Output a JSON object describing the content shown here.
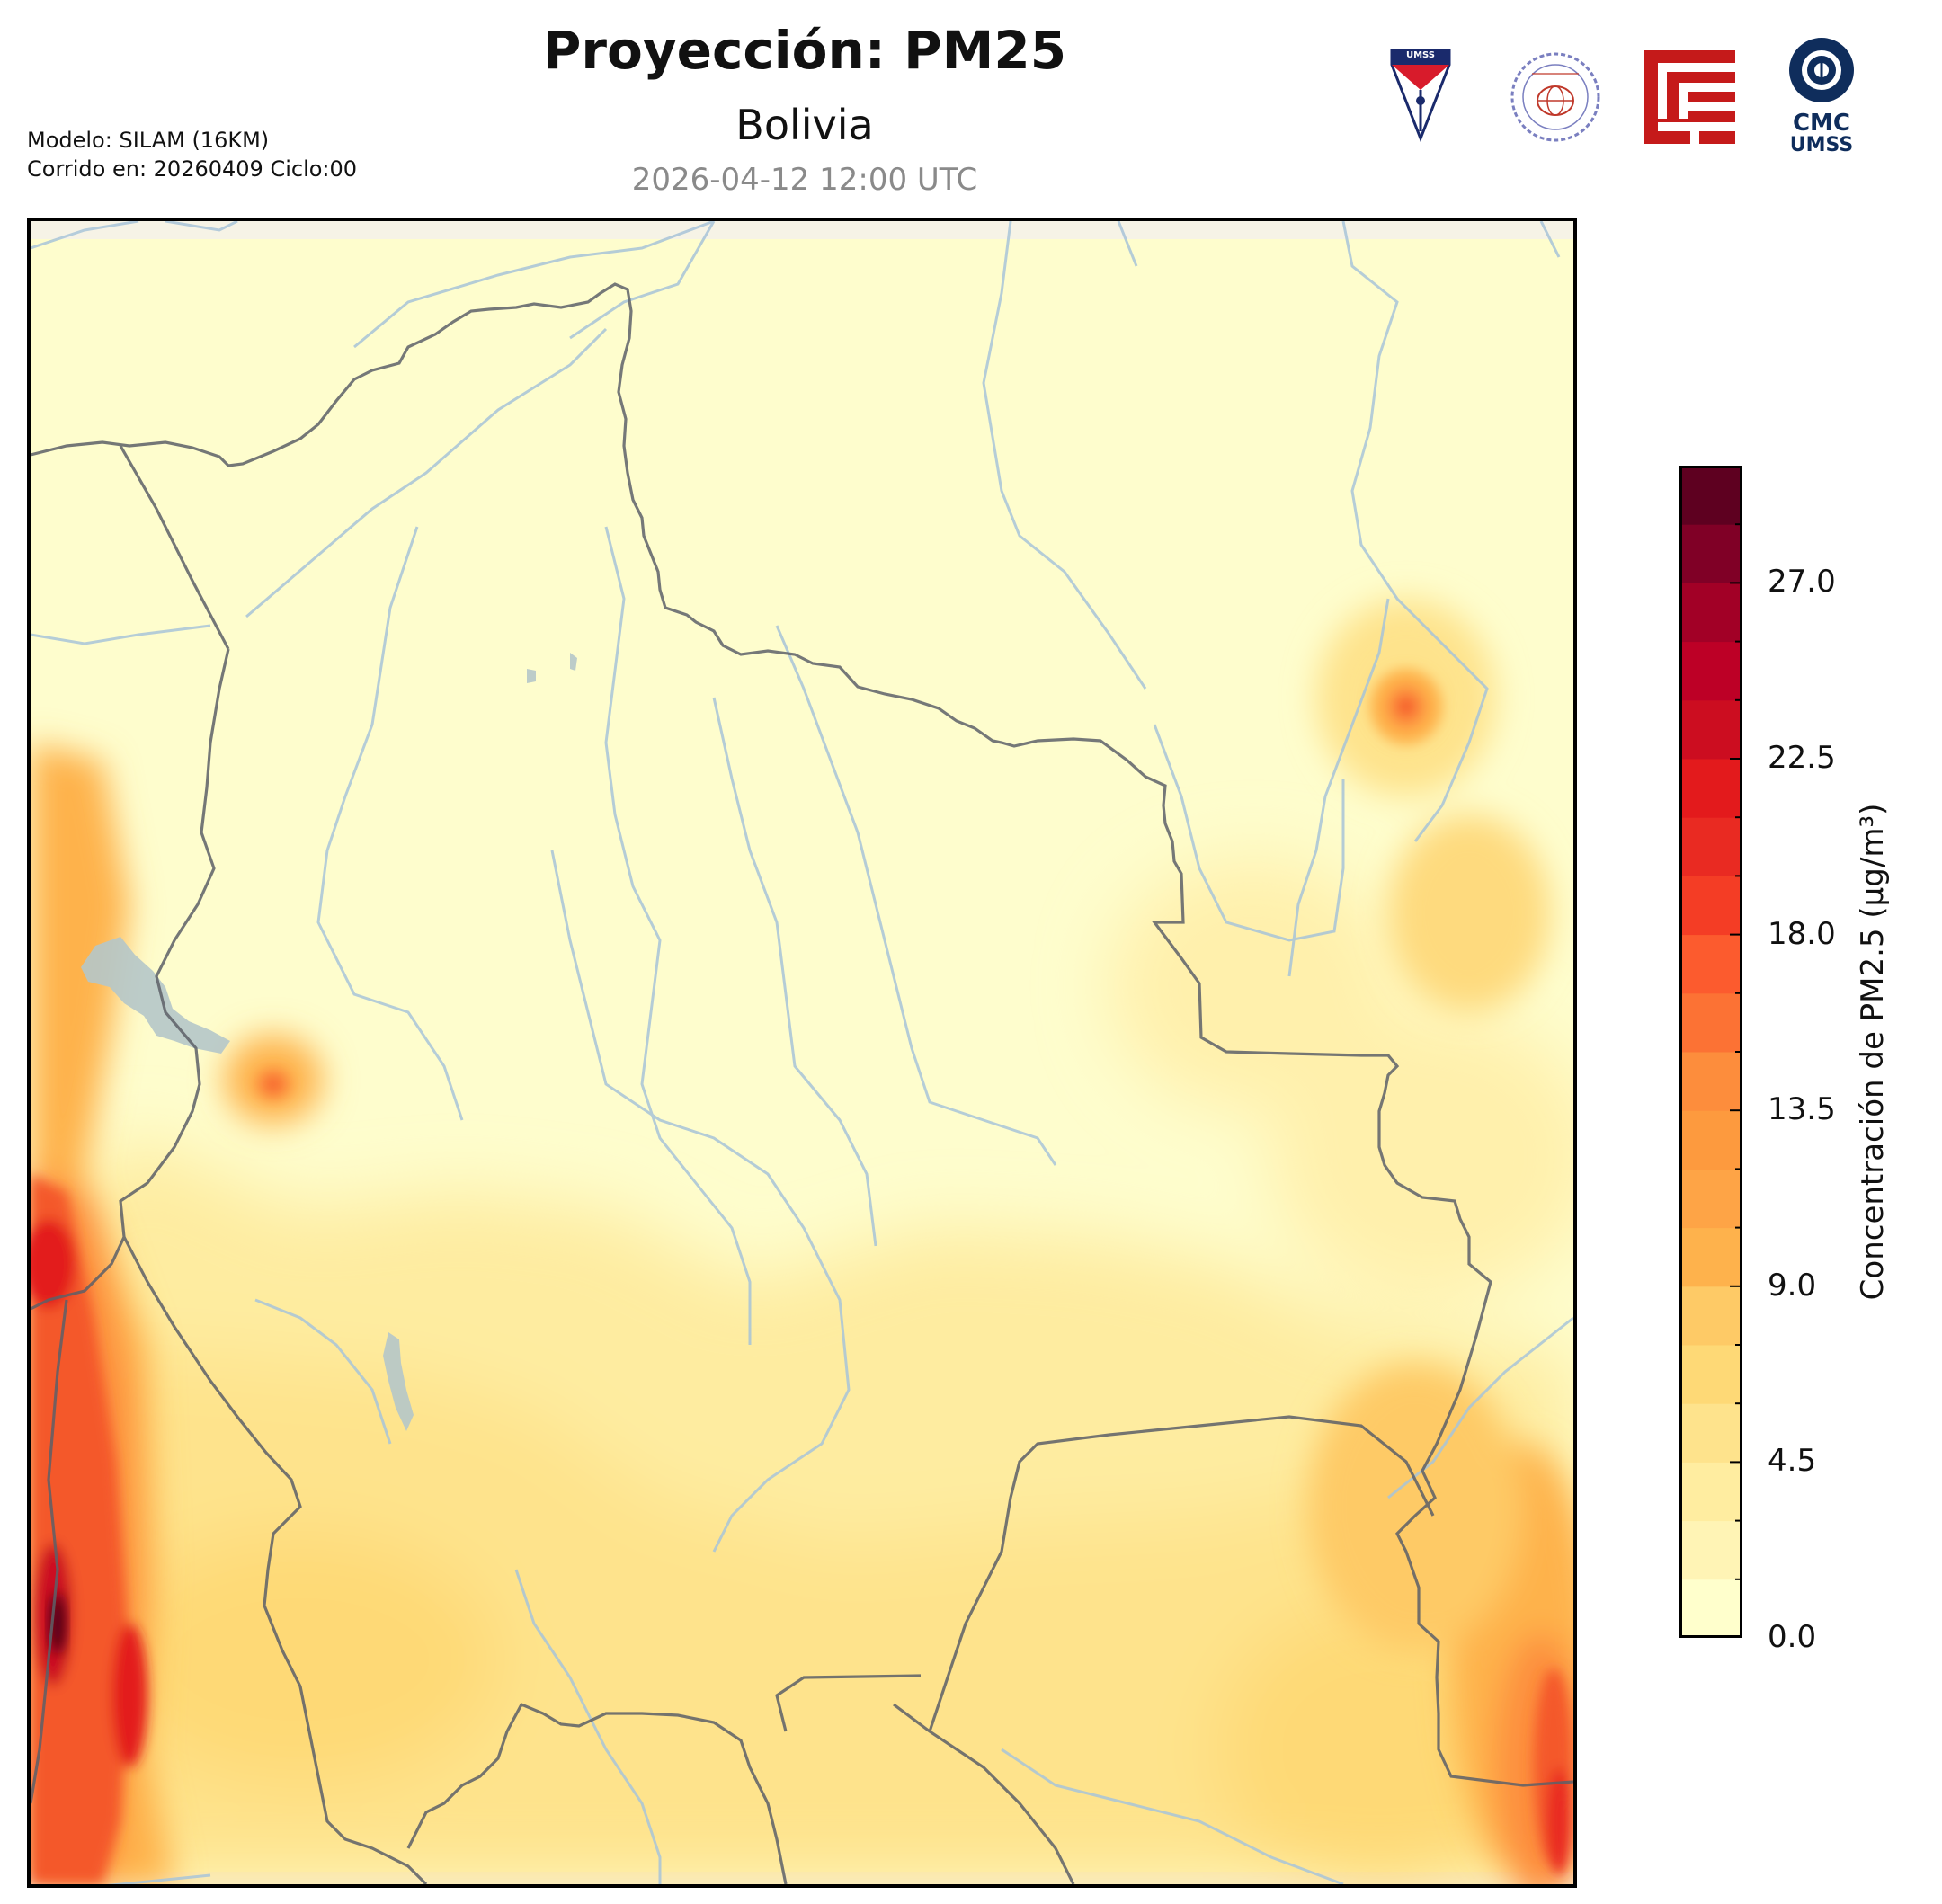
{
  "header": {
    "title": "Proyección: PM25",
    "subtitle": "Bolivia",
    "datetime": "2026-04-12 12:00 UTC"
  },
  "meta": {
    "model": "Modelo: SILAM (16KM)",
    "run": "Corrido en: 20260409 Ciclo:00"
  },
  "logos": {
    "umss_text": "UMSS",
    "cmc_line1": "CMC",
    "cmc_line2": "UMSS",
    "fisica_seal_text": "DEPARTAMENTO DE FISICA"
  },
  "colorbar": {
    "label": "Concentración de PM2.5 (µg/m³)",
    "min": 0,
    "max": 30,
    "ticks": [
      "0.0",
      "4.5",
      "9.0",
      "13.5",
      "18.0",
      "22.5",
      "27.0"
    ],
    "tick_values": [
      0,
      4.5,
      9,
      13.5,
      18,
      22.5,
      27
    ],
    "levels": [
      0,
      1.5,
      3,
      4.5,
      6,
      7.5,
      9,
      10.5,
      12,
      13.5,
      15,
      16.5,
      18,
      19.5,
      21,
      22.5,
      24,
      25.5,
      27,
      28.5,
      30
    ],
    "colors": [
      "#ffffcc",
      "#fff4b5",
      "#ffeda0",
      "#fee38c",
      "#fed976",
      "#feca66",
      "#feb24c",
      "#fea446",
      "#fd9a3e",
      "#fd8d3c",
      "#fc7234",
      "#fc5b2e",
      "#f43d25",
      "#e92a22",
      "#e31a1c",
      "#cc0d20",
      "#bd0026",
      "#a20026",
      "#800026",
      "#5e0020"
    ],
    "cmap": "YlOrRd"
  },
  "map": {
    "region": "Bolivia",
    "variable": "PM2.5",
    "base_color": "#fefdcd",
    "river_color": "#a8c4d8",
    "border_color": "#555555"
  }
}
